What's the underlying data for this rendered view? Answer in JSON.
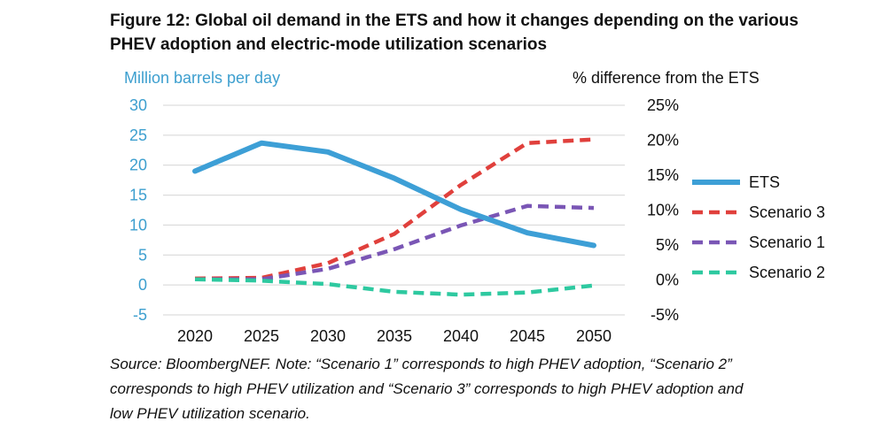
{
  "title": {
    "line1": "Figure 12: Global oil demand in the ETS and how it changes depending on the various",
    "line2": "PHEV adoption and electric-mode utilization scenarios"
  },
  "chart_data": {
    "type": "line",
    "x": [
      2020,
      2025,
      2030,
      2035,
      2040,
      2045,
      2050
    ],
    "left_axis": {
      "label": "Million barrels per day",
      "ylim": [
        -5,
        30
      ],
      "ticks": [
        "30",
        "25",
        "20",
        "15",
        "10",
        "5",
        "0",
        "-5"
      ],
      "tick_values": [
        30,
        25,
        20,
        15,
        10,
        5,
        0,
        -5
      ]
    },
    "right_axis": {
      "label": "% difference from the ETS",
      "ylim": [
        -5,
        25
      ],
      "ticks": [
        "25%",
        "20%",
        "15%",
        "10%",
        "5%",
        "0%",
        "-5%"
      ],
      "tick_values": [
        25,
        20,
        15,
        10,
        5,
        0,
        -5
      ]
    },
    "x_ticks": [
      "2020",
      "2025",
      "2030",
      "2035",
      "2040",
      "2045",
      "2050"
    ],
    "grid": true,
    "legend_position": "right",
    "series": [
      {
        "name": "ETS",
        "axis": "left",
        "style": "solid",
        "color": "#3d9fd6",
        "values": [
          19.0,
          23.7,
          22.2,
          17.8,
          12.6,
          8.7,
          6.6
        ]
      },
      {
        "name": "Scenario 3",
        "axis": "right",
        "style": "dashed",
        "color": "#e0403c",
        "values": [
          0.2,
          0.3,
          2.4,
          6.6,
          13.6,
          19.6,
          20.1
        ]
      },
      {
        "name": "Scenario 1",
        "axis": "right",
        "style": "dashed",
        "color": "#7a56b5",
        "values": [
          0.1,
          0.1,
          1.6,
          4.4,
          7.8,
          10.6,
          10.3
        ]
      },
      {
        "name": "Scenario 2",
        "axis": "right",
        "style": "dashed",
        "color": "#2ec9a0",
        "values": [
          0.1,
          -0.1,
          -0.6,
          -1.7,
          -2.1,
          -1.8,
          -0.8
        ]
      }
    ]
  },
  "source": {
    "line1": "Source: BloombergNEF. Note: “Scenario 1” corresponds to high PHEV adoption, “Scenario 2”",
    "line2": "corresponds to high PHEV utilization and “Scenario 3” corresponds to high PHEV adoption and",
    "line3": "low PHEV utilization scenario."
  }
}
